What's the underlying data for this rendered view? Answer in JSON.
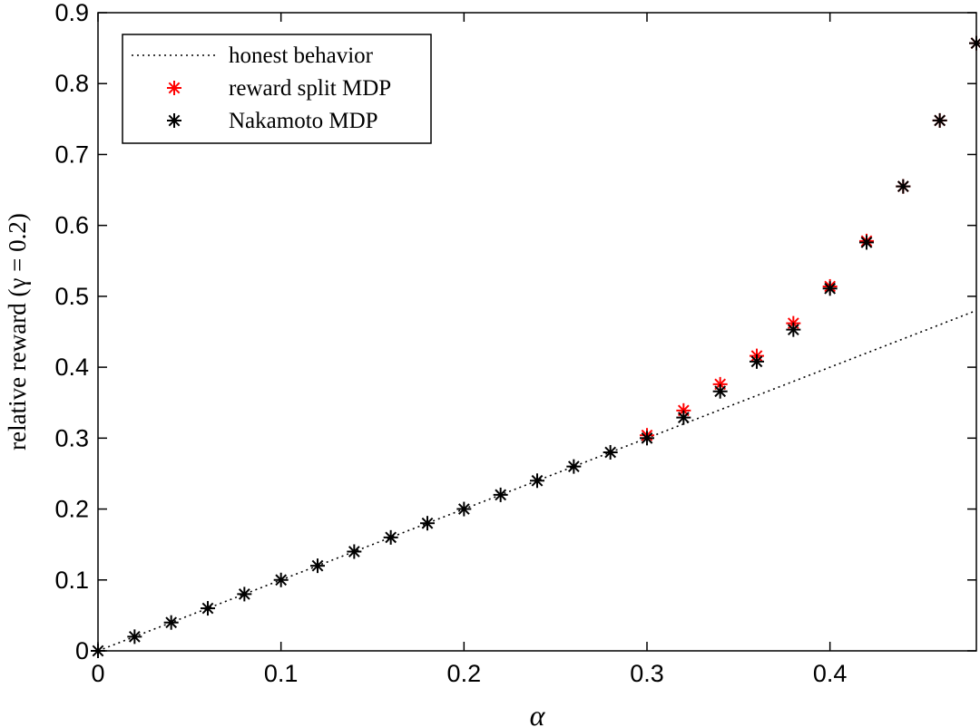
{
  "chart_data": {
    "type": "scatter",
    "xlabel": "α",
    "ylabel": "relative reward (γ = 0.2)",
    "xlim": [
      0,
      0.48
    ],
    "ylim": [
      0,
      0.9
    ],
    "xticks": [
      0,
      0.1,
      0.2,
      0.3,
      0.4
    ],
    "xtick_labels": [
      "0",
      "0.1",
      "0.2",
      "0.3",
      "0.4"
    ],
    "yticks": [
      0,
      0.1,
      0.2,
      0.3,
      0.4,
      0.5,
      0.6,
      0.7,
      0.8,
      0.9
    ],
    "ytick_labels": [
      "0",
      "0.1",
      "0.2",
      "0.3",
      "0.4",
      "0.5",
      "0.6",
      "0.7",
      "0.8",
      "0.9"
    ],
    "grid": false,
    "legend_position": "top-left",
    "series": [
      {
        "name": "honest behavior",
        "kind": "line",
        "style": "dotted",
        "color": "#000000",
        "x": [
          0,
          0.48
        ],
        "y": [
          0,
          0.48
        ]
      },
      {
        "name": "reward split MDP",
        "kind": "marker",
        "marker": "asterisk",
        "color": "#ff0000",
        "x": [
          0.3,
          0.32,
          0.34,
          0.36,
          0.38,
          0.4,
          0.42,
          0.44,
          0.46,
          0.48
        ],
        "y": [
          0.304,
          0.339,
          0.376,
          0.416,
          0.462,
          0.514,
          0.578,
          0.655,
          0.748,
          0.857
        ]
      },
      {
        "name": "Nakamoto MDP",
        "kind": "marker",
        "marker": "asterisk",
        "color": "#000000",
        "x": [
          0,
          0.02,
          0.04,
          0.06,
          0.08,
          0.1,
          0.12,
          0.14,
          0.16,
          0.18,
          0.2,
          0.22,
          0.24,
          0.26,
          0.28,
          0.3,
          0.32,
          0.34,
          0.36,
          0.38,
          0.4,
          0.42,
          0.44,
          0.46,
          0.48
        ],
        "y": [
          0,
          0.02,
          0.04,
          0.06,
          0.08,
          0.1,
          0.12,
          0.14,
          0.16,
          0.18,
          0.2,
          0.22,
          0.24,
          0.26,
          0.28,
          0.3,
          0.329,
          0.366,
          0.408,
          0.453,
          0.511,
          0.576,
          0.655,
          0.748,
          0.857
        ]
      }
    ]
  }
}
